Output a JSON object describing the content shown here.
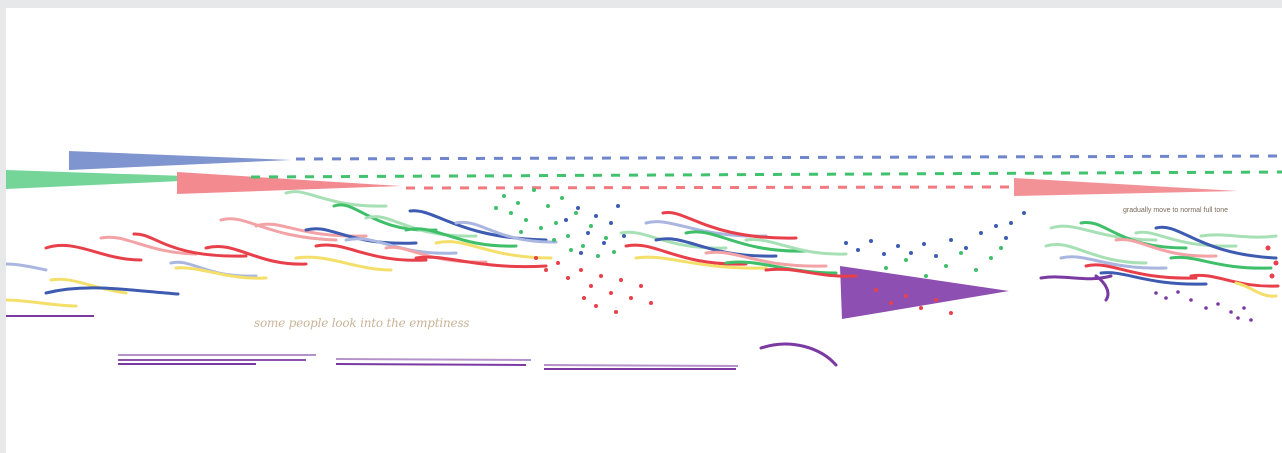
{
  "score": {
    "caption": "some people look into the emptiness",
    "annotation": "gradually move to normal full tone"
  },
  "colors": {
    "blue": "#3d5bb0",
    "green": "#3fbf6a",
    "red": "#e8404a",
    "pink": "#f3a2a6",
    "lightblue": "#a9b6e0",
    "lightgreen": "#a8e0b6",
    "yellow": "#f3df6a",
    "purple": "#7a3aa2"
  }
}
